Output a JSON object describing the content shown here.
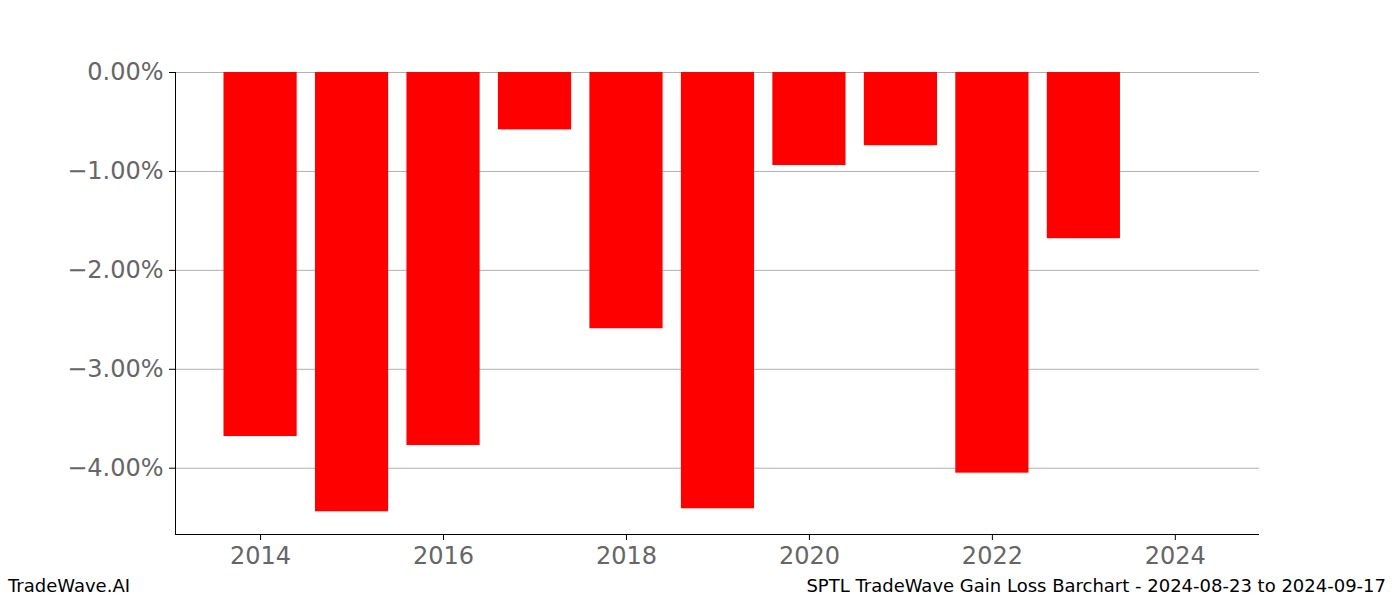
{
  "chart_data": {
    "type": "bar",
    "title": "SPTL TradeWave Gain Loss Barchart - 2024-08-23 to 2024-09-17",
    "credit": "TradeWave.AI",
    "x": [
      2014,
      2015,
      2016,
      2017,
      2018,
      2019,
      2020,
      2021,
      2022,
      2023
    ],
    "values": [
      -3.68,
      -4.44,
      -3.77,
      -0.58,
      -2.59,
      -4.41,
      -0.94,
      -0.74,
      -4.05,
      -1.68
    ],
    "color": "#ff0000",
    "xlim": [
      2013.07,
      2024.92
    ],
    "xticks": [
      2014,
      2016,
      2018,
      2020,
      2022,
      2024
    ],
    "ylim": [
      -4.67,
      0
    ],
    "yticks": [
      {
        "value": 0,
        "label": "0.00%"
      },
      {
        "value": -1,
        "label": "−1.00%"
      },
      {
        "value": -2,
        "label": "−2.00%"
      },
      {
        "value": -3,
        "label": "−3.00%"
      },
      {
        "value": -4,
        "label": "−4.00%"
      }
    ],
    "grid": true
  }
}
